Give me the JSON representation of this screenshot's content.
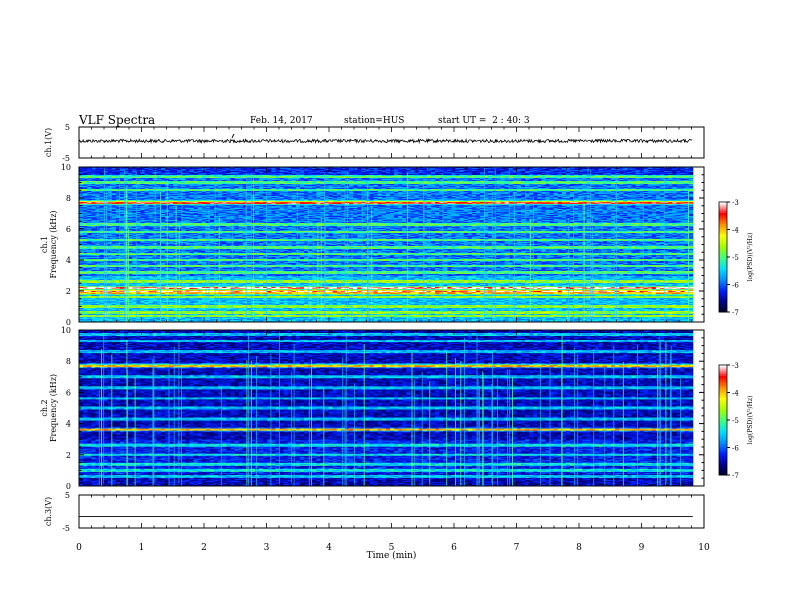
{
  "header": {
    "title": "VLF Spectra",
    "date": "Feb. 14, 2017",
    "station": "station=HUS",
    "start_ut": "start UT =  2 : 40: 3"
  },
  "chart_data": [
    {
      "type": "line",
      "panel": "ch1-waveform",
      "ylabel": "ch.1(V)",
      "yticks": [
        "5",
        "-5"
      ],
      "ylim": [
        -5,
        5
      ],
      "xlim": [
        0,
        10
      ],
      "series": [
        {
          "values_description_free": true,
          "level": 0.5,
          "noise": "small"
        }
      ]
    },
    {
      "type": "heatmap",
      "panel": "ch1-spectrogram",
      "ylabel_top": "ch.1",
      "ylabel": "Frequency (kHz)",
      "yticks": [
        "0",
        "2",
        "4",
        "6",
        "8",
        "10"
      ],
      "ylim": [
        0,
        10
      ],
      "xlim": [
        0,
        10
      ],
      "colorbar": {
        "ticks": [
          "-3",
          "-4",
          "-5",
          "-6",
          "-7"
        ],
        "label": "log(PSD)(V²/Hz)",
        "range": [
          -7,
          -3
        ]
      },
      "bands_khz": [
        0.4,
        0.6,
        1.0,
        1.6,
        2.0,
        2.2,
        2.6,
        3.2,
        3.6,
        4.0,
        4.4,
        4.8,
        5.3,
        5.8,
        6.3,
        7.7,
        8.5,
        9.0,
        9.4
      ],
      "strong_bands_khz": [
        1.9,
        2.2,
        7.7
      ]
    },
    {
      "type": "heatmap",
      "panel": "ch2-spectrogram",
      "ylabel_top": "ch.2",
      "ylabel": "Frequency (kHz)",
      "yticks": [
        "0",
        "2",
        "4",
        "6",
        "8",
        "10"
      ],
      "ylim": [
        0,
        10
      ],
      "xlim": [
        0,
        10
      ],
      "colorbar": {
        "ticks": [
          "-3",
          "-4",
          "-5",
          "-6",
          "-7"
        ],
        "label": "log(PSD)(V²/Hz)",
        "range": [
          -7,
          -3
        ]
      },
      "bands_khz": [
        0.6,
        1.0,
        1.4,
        2.0,
        2.6,
        3.6,
        4.3,
        5.0,
        5.6,
        6.3,
        7.0,
        7.7,
        8.6,
        9.3,
        9.7
      ],
      "strong_bands_khz": [
        3.6,
        7.7
      ]
    },
    {
      "type": "line",
      "panel": "ch3-waveform",
      "ylabel": "ch.3(V)",
      "yticks": [
        "5",
        "-5"
      ],
      "ylim": [
        -5,
        5
      ],
      "xlim": [
        0,
        10
      ],
      "series": [
        {
          "level": -1.5
        }
      ]
    }
  ],
  "xaxis": {
    "label": "Time (min)",
    "ticks": [
      "0",
      "1",
      "2",
      "3",
      "4",
      "5",
      "6",
      "7",
      "8",
      "9",
      "10"
    ],
    "data_end_min": 9.82
  },
  "colors": {
    "colormap": [
      "#000020",
      "#00008c",
      "#0020ff",
      "#0090ff",
      "#00e0ff",
      "#40ff80",
      "#a0ff00",
      "#ffff00",
      "#ff9000",
      "#ff0000",
      "#ffffff"
    ]
  }
}
